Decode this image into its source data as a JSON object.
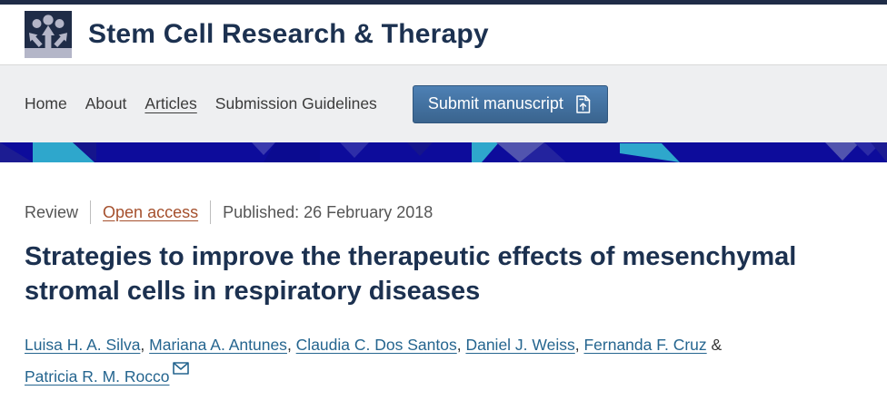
{
  "brand": {
    "journal_title": "Stem Cell Research & Therapy",
    "logo_icon": "people-arrows-icon"
  },
  "nav": {
    "items": [
      {
        "label": "Home",
        "active": false
      },
      {
        "label": "About",
        "active": false
      },
      {
        "label": "Articles",
        "active": true
      },
      {
        "label": "Submission Guidelines",
        "active": false
      }
    ],
    "submit_button": {
      "label": "Submit manuscript",
      "icon": "manuscript-upload-icon"
    }
  },
  "article": {
    "type_label": "Review",
    "access_label": "Open access",
    "published_label": "Published: 26 February 2018",
    "title": "Strategies to improve the therapeutic effects of mesenchymal stromal cells in respiratory diseases",
    "authors": [
      {
        "name": "Luisa H. A. Silva",
        "corresponding": false
      },
      {
        "name": "Mariana A. Antunes",
        "corresponding": false
      },
      {
        "name": "Claudia C. Dos Santos",
        "corresponding": false
      },
      {
        "name": "Daniel J. Weiss",
        "corresponding": false
      },
      {
        "name": "Fernanda F. Cruz",
        "corresponding": false
      },
      {
        "name": "Patricia R. M. Rocco",
        "corresponding": true
      }
    ]
  },
  "colors": {
    "top_bar_navy": "#1f2c47",
    "heading_navy": "#1c3150",
    "nav_background": "#eeeff1",
    "button_blue_top": "#4d80b4",
    "button_blue_bottom": "#3a648e",
    "banner_navy": "#0d0c9b",
    "banner_teal": "#2ea7cc",
    "banner_purple": "#5154ae",
    "open_access_rust": "#a5502d",
    "author_link_blue": "#25658f",
    "meta_gray": "#555555"
  }
}
